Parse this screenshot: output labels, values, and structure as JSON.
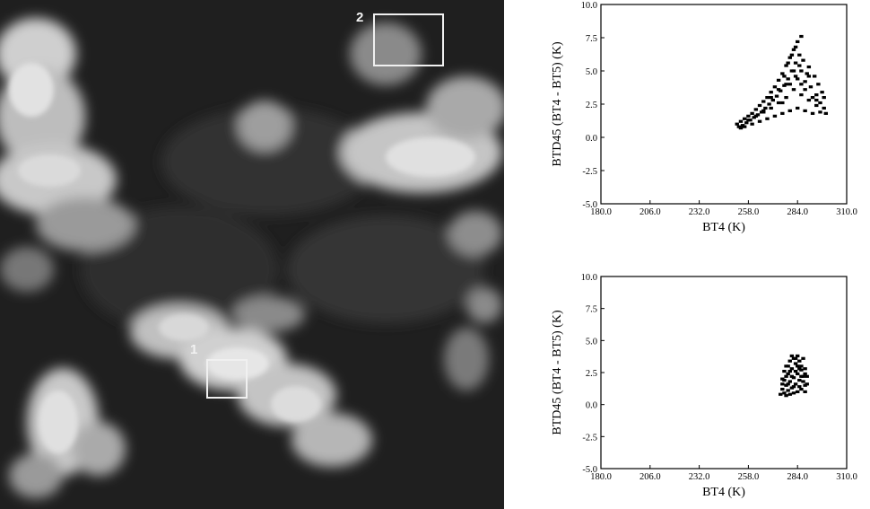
{
  "image_panel": {
    "region_labels": [
      "1",
      "2"
    ]
  },
  "chart_data": [
    {
      "type": "scatter",
      "title": "",
      "xlabel": "BT4 (K)",
      "ylabel": "BTD45 (BT4 - BT5) (K)",
      "xlim": [
        180.0,
        310.0
      ],
      "ylim": [
        -5.0,
        10.0
      ],
      "xticks": [
        "180.0",
        "206.0",
        "232.0",
        "258.0",
        "284.0",
        "310.0"
      ],
      "yticks": [
        "10.0",
        "7.5",
        "5.0",
        "2.5",
        "0.0",
        "-2.5",
        "-5.0"
      ],
      "grid": false,
      "series": [
        {
          "points": [
            [
              252,
              1.0
            ],
            [
              253,
              0.8
            ],
            [
              254,
              1.2
            ],
            [
              255,
              0.9
            ],
            [
              256,
              1.4
            ],
            [
              257,
              1.1
            ],
            [
              258,
              1.6
            ],
            [
              259,
              1.3
            ],
            [
              260,
              1.8
            ],
            [
              261,
              1.5
            ],
            [
              262,
              2.1
            ],
            [
              263,
              1.7
            ],
            [
              264,
              2.4
            ],
            [
              265,
              1.9
            ],
            [
              266,
              2.7
            ],
            [
              267,
              2.2
            ],
            [
              268,
              3.0
            ],
            [
              269,
              2.5
            ],
            [
              270,
              3.4
            ],
            [
              271,
              2.8
            ],
            [
              272,
              3.8
            ],
            [
              273,
              3.1
            ],
            [
              274,
              4.3
            ],
            [
              275,
              3.5
            ],
            [
              276,
              4.8
            ],
            [
              277,
              3.9
            ],
            [
              278,
              5.4
            ],
            [
              279,
              4.4
            ],
            [
              280,
              6.0
            ],
            [
              281,
              5.0
            ],
            [
              282,
              6.6
            ],
            [
              283,
              5.6
            ],
            [
              284,
              7.2
            ],
            [
              285,
              6.2
            ],
            [
              286,
              7.6
            ],
            [
              283,
              4.6
            ],
            [
              286,
              5.0
            ],
            [
              288,
              4.2
            ],
            [
              290,
              5.3
            ],
            [
              291,
              3.8
            ],
            [
              293,
              4.6
            ],
            [
              294,
              3.2
            ],
            [
              295,
              4.0
            ],
            [
              296,
              2.6
            ],
            [
              297,
              3.4
            ],
            [
              298,
              2.2
            ],
            [
              299,
              1.8
            ],
            [
              298,
              3.0
            ],
            [
              296,
              1.9
            ],
            [
              294,
              2.4
            ],
            [
              292,
              1.8
            ],
            [
              290,
              2.8
            ],
            [
              288,
              2.0
            ],
            [
              286,
              3.2
            ],
            [
              284,
              2.2
            ],
            [
              282,
              3.6
            ],
            [
              280,
              2.0
            ],
            [
              278,
              3.0
            ],
            [
              276,
              1.8
            ],
            [
              274,
              2.6
            ],
            [
              272,
              1.6
            ],
            [
              270,
              2.2
            ],
            [
              268,
              1.4
            ],
            [
              266,
              1.9
            ],
            [
              264,
              1.2
            ],
            [
              262,
              1.6
            ],
            [
              260,
              1.0
            ],
            [
              258,
              1.3
            ],
            [
              256,
              0.8
            ],
            [
              254,
              0.7
            ],
            [
              276,
              2.6
            ],
            [
              280,
              4.0
            ],
            [
              284,
              4.4
            ],
            [
              288,
              3.6
            ],
            [
              292,
              3.0
            ],
            [
              278,
              4.0
            ],
            [
              282,
              5.0
            ],
            [
              286,
              4.0
            ],
            [
              290,
              4.6
            ],
            [
              294,
              2.8
            ],
            [
              270,
              3.0
            ],
            [
              274,
              3.6
            ],
            [
              266,
              2.0
            ],
            [
              287,
              5.8
            ],
            [
              289,
              4.8
            ],
            [
              285,
              5.4
            ],
            [
              281,
              6.2
            ],
            [
              279,
              5.6
            ],
            [
              283,
              6.8
            ],
            [
              277,
              4.6
            ]
          ]
        }
      ]
    },
    {
      "type": "scatter",
      "title": "",
      "xlabel": "BT4 (K)",
      "ylabel": "BTD45 (BT4 - BT5) (K)",
      "xlim": [
        180.0,
        310.0
      ],
      "ylim": [
        -5.0,
        10.0
      ],
      "xticks": [
        "180.0",
        "206.0",
        "232.0",
        "258.0",
        "284.0",
        "310.0"
      ],
      "yticks": [
        "10.0",
        "7.5",
        "5.0",
        "2.5",
        "0.0",
        "-2.5",
        "-5.0"
      ],
      "grid": false,
      "series": [
        {
          "points": [
            [
              275,
              0.8
            ],
            [
              276,
              1.2
            ],
            [
              277,
              0.9
            ],
            [
              278,
              1.5
            ],
            [
              279,
              1.1
            ],
            [
              280,
              1.8
            ],
            [
              281,
              1.3
            ],
            [
              282,
              2.1
            ],
            [
              283,
              1.6
            ],
            [
              284,
              2.4
            ],
            [
              285,
              1.9
            ],
            [
              286,
              2.7
            ],
            [
              287,
              2.2
            ],
            [
              288,
              1.5
            ],
            [
              276,
              2.0
            ],
            [
              277,
              2.6
            ],
            [
              278,
              3.0
            ],
            [
              279,
              2.4
            ],
            [
              280,
              3.4
            ],
            [
              281,
              2.8
            ],
            [
              282,
              3.6
            ],
            [
              283,
              3.2
            ],
            [
              284,
              3.8
            ],
            [
              285,
              3.4
            ],
            [
              286,
              3.0
            ],
            [
              287,
              3.6
            ],
            [
              288,
              2.8
            ],
            [
              289,
              2.2
            ],
            [
              289,
              1.6
            ],
            [
              288,
              1.0
            ],
            [
              286,
              1.2
            ],
            [
              284,
              1.0
            ],
            [
              282,
              0.9
            ],
            [
              280,
              0.8
            ],
            [
              278,
              0.7
            ],
            [
              276,
              1.6
            ],
            [
              279,
              3.0
            ],
            [
              283,
              2.6
            ],
            [
              285,
              2.8
            ],
            [
              287,
              1.8
            ],
            [
              281,
              2.2
            ],
            [
              277,
              1.9
            ],
            [
              280,
              2.6
            ],
            [
              284,
              3.0
            ],
            [
              286,
              2.2
            ],
            [
              282,
              1.4
            ],
            [
              279,
              1.6
            ],
            [
              285,
              1.4
            ],
            [
              288,
              2.4
            ],
            [
              283,
              3.6
            ],
            [
              281,
              3.8
            ],
            [
              278,
              2.2
            ]
          ]
        }
      ]
    }
  ]
}
